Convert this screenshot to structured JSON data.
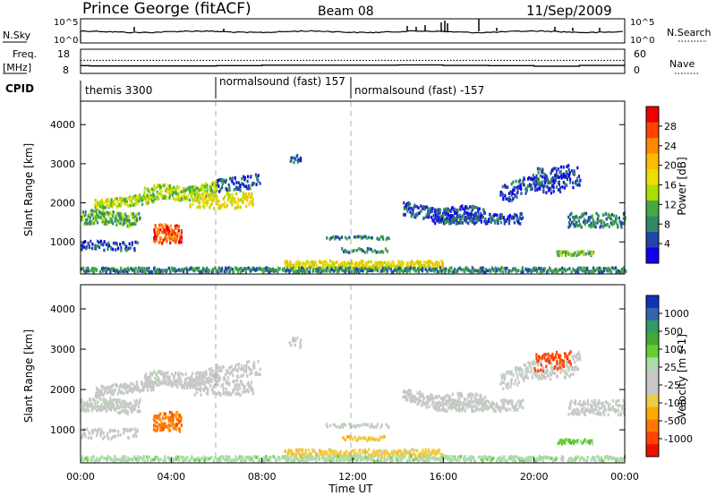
{
  "header": {
    "station": "Prince George (fitACF)",
    "beam": "Beam 08",
    "date": "11/Sep/2009"
  },
  "side_labels": {
    "nsky": "N.Sky",
    "freq": "Freq.",
    "freq_unit": "[MHz]",
    "cpid": "CPID",
    "nsearch": "N.Search",
    "nave": "Nave"
  },
  "cpid_segments": [
    {
      "label": "themis 3300",
      "start_hour": 0.1
    },
    {
      "label": "normalsound (fast) 157",
      "start_hour": 6.0
    },
    {
      "label": "normalsound (fast) -157",
      "start_hour": 12.0
    }
  ],
  "chart_data": [
    {
      "type": "line",
      "name": "sky-noise-and-search-noise",
      "y_ticks_left": [
        "10^5",
        "10^0"
      ],
      "y_ticks_right": [
        "10^5",
        "10^0"
      ],
      "xlim_hours": [
        0,
        24
      ]
    },
    {
      "type": "line",
      "name": "frequency-and-nave",
      "y_ticks_left": [
        "18",
        "8"
      ],
      "y_ticks_right": [
        "60",
        "0"
      ],
      "series": [
        {
          "x": [
            0,
            0.4,
            4,
            6,
            8,
            12,
            14,
            16,
            18,
            20,
            22,
            24
          ],
          "y": [
            11.2,
            11.1,
            11.1,
            11.2,
            11.4,
            11.4,
            11.5,
            11.3,
            11.2,
            11.0,
            11.3,
            11.2
          ]
        },
        {
          "x": [
            0,
            24
          ],
          "y": [
            13.4,
            13.4
          ]
        }
      ]
    },
    {
      "type": "heatmap",
      "name": "power",
      "ylabel": "Slant Range [km]",
      "yticks": [
        1000,
        2000,
        3000,
        4000
      ],
      "ylim": [
        180,
        4600
      ],
      "xlim_hours": [
        0,
        24
      ],
      "colorbar_title": "Power [dB]",
      "colorbar_ticks": [
        "28",
        "24",
        "20",
        "16",
        "12",
        "8",
        "4"
      ],
      "colorbar_colors": [
        "#ee0000",
        "#ff4400",
        "#ff8800",
        "#ffbb00",
        "#eedd00",
        "#aadd00",
        "#44aa44",
        "#338866",
        "#2244aa",
        "#1100ee"
      ]
    },
    {
      "type": "heatmap",
      "name": "velocity",
      "ylabel": "Slant Range [km]",
      "yticks": [
        1000,
        2000,
        3000,
        4000
      ],
      "ylim": [
        180,
        4600
      ],
      "xlim_hours": [
        0,
        24
      ],
      "xticks": [
        "00:00",
        "04:00",
        "08:00",
        "12:00",
        "16:00",
        "20:00",
        "00:00"
      ],
      "xlabel": "Time UT",
      "colorbar_title": "Velocity [m s-1]",
      "colorbar_ticks": [
        "1000",
        "500",
        "100",
        "25",
        "-25",
        "-100",
        "-500",
        "-1000"
      ],
      "colorbar_colors": [
        "#1133bb",
        "#3366aa",
        "#339966",
        "#44aa33",
        "#66cc33",
        "#aaddaa",
        "#c8c8c8",
        "#c8c8c8",
        "#eecc44",
        "#ffaa00",
        "#ff7700",
        "#ff4400",
        "#ee1100"
      ]
    }
  ]
}
